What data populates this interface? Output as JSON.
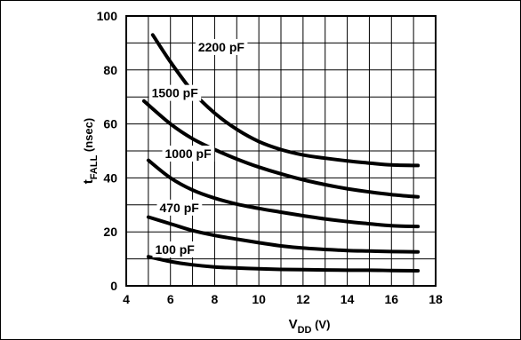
{
  "chart_data": {
    "type": "line",
    "xlabel": {
      "main": "V",
      "sub": "DD",
      "unit": " (V)"
    },
    "ylabel": {
      "main": "t",
      "sub": "FALL",
      "unit": " (nsec)"
    },
    "xlim": [
      4,
      18
    ],
    "ylim": [
      0,
      100
    ],
    "x_ticks": [
      4,
      6,
      8,
      10,
      12,
      14,
      16,
      18
    ],
    "y_ticks": [
      0,
      20,
      40,
      60,
      80,
      100
    ],
    "grid": true,
    "legend": "none",
    "series": [
      {
        "name": "2200 pF",
        "x": [
          5.2,
          6,
          7,
          8,
          9,
          10,
          11,
          12,
          13,
          14,
          15,
          16,
          17.2
        ],
        "y": [
          93,
          83,
          72,
          64,
          58,
          53.5,
          50.5,
          48.5,
          47.3,
          46.3,
          45.5,
          44.8,
          44.6
        ]
      },
      {
        "name": "1500 pF",
        "x": [
          4.8,
          6,
          7,
          8,
          9,
          10,
          11,
          12,
          13,
          14,
          15,
          16,
          17.2
        ],
        "y": [
          68.5,
          60,
          54.5,
          50.5,
          47,
          44,
          41.5,
          39.3,
          37.5,
          36,
          34.8,
          33.8,
          33
        ]
      },
      {
        "name": "1000 pF",
        "x": [
          5.0,
          6,
          7,
          8,
          9,
          10,
          11,
          12,
          13,
          14,
          15,
          16,
          17.2
        ],
        "y": [
          46.5,
          40,
          35.5,
          32.5,
          30.3,
          28.7,
          27.3,
          26,
          24.8,
          23.8,
          23,
          22.3,
          22
        ]
      },
      {
        "name": "470 pF",
        "x": [
          5.0,
          6,
          7,
          8,
          9,
          10,
          11,
          12,
          13,
          14,
          15,
          16,
          17.2
        ],
        "y": [
          25.5,
          23,
          20.5,
          18.7,
          17.3,
          16,
          14.8,
          14,
          13.5,
          13.1,
          12.9,
          12.7,
          12.6
        ]
      },
      {
        "name": "100 pF",
        "x": [
          5.0,
          6,
          7,
          8,
          9,
          10,
          11,
          12,
          13,
          14,
          15,
          16,
          17.2
        ],
        "y": [
          10.8,
          9,
          7.8,
          7,
          6.6,
          6.3,
          6.1,
          6,
          5.9,
          5.8,
          5.8,
          5.7,
          5.6
        ]
      }
    ],
    "curve_labels": [
      {
        "text": "2200 pF",
        "x": 8.3,
        "y": 88.5
      },
      {
        "text": "1500 pF",
        "x": 6.2,
        "y": 71.5
      },
      {
        "text": "1000 pF",
        "x": 6.8,
        "y": 49
      },
      {
        "text": "470 pF",
        "x": 6.4,
        "y": 29
      },
      {
        "text": "100 pF",
        "x": 6.2,
        "y": 13.5
      }
    ]
  }
}
